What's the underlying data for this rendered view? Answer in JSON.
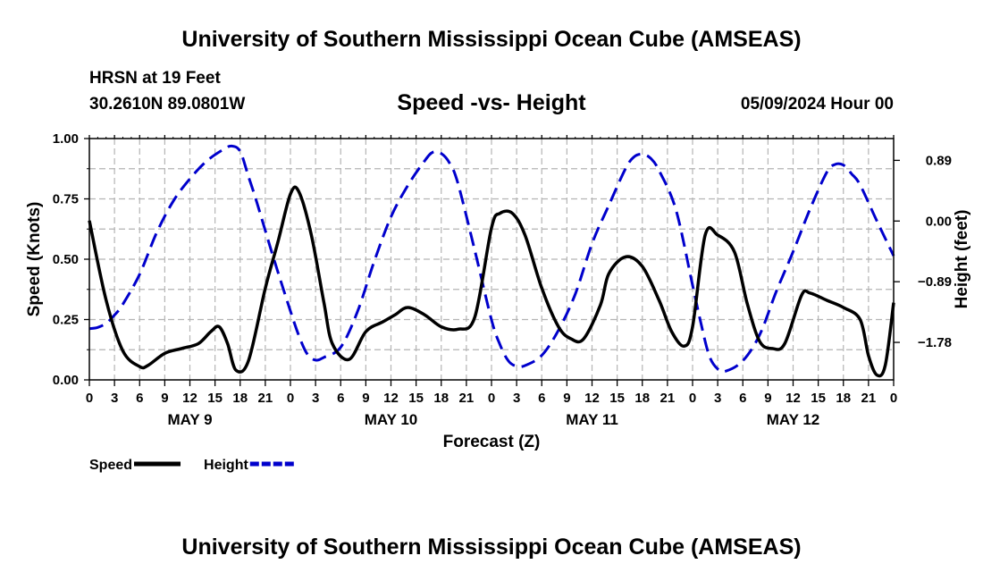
{
  "header": {
    "title": "University of Southern Mississippi Ocean Cube (AMSEAS)",
    "station": "HRSN at 19 Feet",
    "coords": "30.2610N  89.0801W",
    "subtitle": "Speed -vs- Height",
    "date": "05/09/2024 Hour 00"
  },
  "footer": {
    "title": "University of Southern Mississippi Ocean Cube (AMSEAS)"
  },
  "chart_data": {
    "type": "line",
    "title": "Speed -vs- Height",
    "xlabel": "Forecast (Z)",
    "ylabel": "Speed (Knots)",
    "y2label": "Height (feet)",
    "xlim": [
      0,
      96
    ],
    "ylim": [
      0,
      1.0
    ],
    "y2lim": [
      -2.33,
      1.21
    ],
    "grid": true,
    "x_tick_values": [
      0,
      3,
      6,
      9,
      12,
      15,
      18,
      21,
      24,
      27,
      30,
      33,
      36,
      39,
      42,
      45,
      48,
      51,
      54,
      57,
      60,
      63,
      66,
      69,
      72,
      75,
      78,
      81,
      84,
      87,
      90,
      93,
      96
    ],
    "x_tick_labels": [
      "0",
      "3",
      "6",
      "9",
      "12",
      "15",
      "18",
      "21",
      "0",
      "3",
      "6",
      "9",
      "12",
      "15",
      "18",
      "21",
      "0",
      "3",
      "6",
      "9",
      "12",
      "15",
      "18",
      "21",
      "0",
      "3",
      "6",
      "9",
      "12",
      "15",
      "18",
      "21",
      "0"
    ],
    "day_labels": [
      {
        "x": 12,
        "label": "MAY 9"
      },
      {
        "x": 36,
        "label": "MAY 10"
      },
      {
        "x": 60,
        "label": "MAY 11"
      },
      {
        "x": 84,
        "label": "MAY 12"
      }
    ],
    "y_ticks": [
      {
        "value": 0.0,
        "label": "0.00"
      },
      {
        "value": 0.25,
        "label": "0.25"
      },
      {
        "value": 0.5,
        "label": "0.50"
      },
      {
        "value": 0.75,
        "label": "0.75"
      },
      {
        "value": 1.0,
        "label": "1.00"
      }
    ],
    "y2_ticks": [
      {
        "value": 0.89,
        "label": "0.89"
      },
      {
        "value": 0.0,
        "label": "0.00"
      },
      {
        "value": -0.89,
        "label": "−0.89"
      },
      {
        "value": -1.78,
        "label": "−1.78"
      }
    ],
    "legend": [
      {
        "name": "Speed",
        "color": "#000000",
        "dash": "solid"
      },
      {
        "name": "Height",
        "color": "#0000cc",
        "dash": "dashed"
      }
    ],
    "series": [
      {
        "name": "Speed",
        "axis": "left",
        "color": "#000000",
        "x": [
          0,
          2,
          4,
          6,
          7,
          9,
          11,
          13,
          14.5,
          15.5,
          16.5,
          17.5,
          19,
          21,
          22.5,
          24,
          25,
          26.5,
          28,
          29,
          31,
          33,
          35,
          36.5,
          38,
          40,
          42,
          44,
          46,
          48,
          49,
          50.5,
          52,
          54,
          56,
          57.5,
          59,
          61,
          62,
          64,
          66,
          68,
          69.5,
          71,
          72,
          73.5,
          75,
          77,
          78.5,
          80,
          81.5,
          83,
          85,
          86,
          88,
          90,
          92,
          93,
          94,
          95,
          96
        ],
        "y": [
          0.66,
          0.33,
          0.12,
          0.055,
          0.06,
          0.11,
          0.13,
          0.15,
          0.2,
          0.22,
          0.15,
          0.04,
          0.08,
          0.38,
          0.57,
          0.77,
          0.78,
          0.6,
          0.32,
          0.15,
          0.085,
          0.2,
          0.24,
          0.27,
          0.3,
          0.27,
          0.22,
          0.21,
          0.26,
          0.63,
          0.69,
          0.69,
          0.6,
          0.38,
          0.22,
          0.17,
          0.17,
          0.31,
          0.44,
          0.51,
          0.47,
          0.33,
          0.2,
          0.14,
          0.22,
          0.6,
          0.6,
          0.53,
          0.32,
          0.16,
          0.13,
          0.15,
          0.35,
          0.36,
          0.33,
          0.3,
          0.25,
          0.1,
          0.02,
          0.06,
          0.32
        ]
      },
      {
        "name": "Height",
        "axis": "right",
        "color": "#0000cc",
        "x": [
          0,
          1,
          2,
          3,
          4,
          6,
          8,
          10,
          12,
          14,
          16,
          17,
          18,
          19,
          20,
          22,
          24,
          25,
          26,
          27,
          28,
          30,
          32,
          34,
          36,
          38,
          40,
          41,
          42,
          43,
          44,
          46,
          48,
          49,
          50,
          51,
          52,
          54,
          56,
          58,
          60,
          62,
          64,
          65,
          66,
          67,
          68,
          70,
          72,
          73,
          74,
          75,
          76,
          78,
          80,
          82,
          84,
          86,
          88,
          89,
          90,
          91,
          92,
          94,
          96
        ],
        "y": [
          -1.58,
          -1.56,
          -1.5,
          -1.38,
          -1.22,
          -0.78,
          -0.18,
          0.29,
          0.62,
          0.88,
          1.05,
          1.1,
          1.02,
          0.65,
          0.27,
          -0.55,
          -1.32,
          -1.68,
          -1.95,
          -2.04,
          -2.0,
          -1.85,
          -1.33,
          -0.59,
          0.06,
          0.52,
          0.88,
          1.01,
          0.99,
          0.85,
          0.55,
          -0.43,
          -1.45,
          -1.81,
          -2.05,
          -2.13,
          -2.12,
          -1.97,
          -1.6,
          -1.07,
          -0.33,
          0.23,
          0.77,
          0.94,
          0.98,
          0.92,
          0.74,
          0.17,
          -0.94,
          -1.5,
          -1.98,
          -2.17,
          -2.2,
          -2.05,
          -1.67,
          -1.03,
          -0.45,
          0.17,
          0.71,
          0.83,
          0.82,
          0.69,
          0.53,
          0.0,
          -0.51
        ]
      }
    ]
  }
}
